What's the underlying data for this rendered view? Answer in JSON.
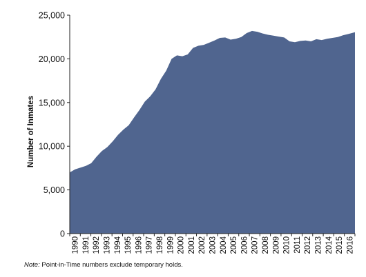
{
  "chart_data": {
    "type": "area",
    "title": "",
    "xlabel": "",
    "ylabel": "Number of Inmates",
    "ylim": [
      0,
      25000
    ],
    "yticks": [
      0,
      5000,
      10000,
      15000,
      20000,
      25000
    ],
    "ytick_labels": [
      "0",
      "5,000",
      "10,000",
      "15,000",
      "20,000",
      "25,000"
    ],
    "xticks": [
      "1990",
      "1991",
      "1992",
      "1993",
      "1994",
      "1995",
      "1996",
      "1997",
      "1998",
      "1999",
      "2000",
      "2001",
      "2002",
      "2003",
      "2004",
      "2005",
      "2006",
      "2007",
      "2008",
      "2009",
      "2010",
      "2011",
      "2012",
      "2013",
      "2014",
      "2015",
      "2016"
    ],
    "grid": false,
    "legend": "none",
    "color": "#50658f",
    "series": [
      {
        "x": [
          1990.0,
          1990.5,
          1991.0,
          1991.5,
          1992.0,
          1992.5,
          1993.0,
          1993.5,
          1994.0,
          1994.5,
          1995.0,
          1995.5,
          1996.0,
          1996.5,
          1997.0,
          1997.5,
          1998.0,
          1998.5,
          1999.0,
          1999.5,
          2000.0,
          2000.5,
          2001.0,
          2001.5,
          2002.0,
          2002.5,
          2003.0,
          2003.5,
          2004.0,
          2004.5,
          2005.0,
          2005.5,
          2006.0,
          2006.5,
          2007.0,
          2007.5,
          2008.0,
          2008.5,
          2009.0,
          2009.5,
          2010.0,
          2010.5,
          2011.0,
          2011.5,
          2012.0,
          2012.5,
          2013.0,
          2013.5,
          2014.0,
          2014.5,
          2015.0,
          2015.5,
          2016.0,
          2016.6
        ],
        "values": [
          7000,
          7350,
          7550,
          7750,
          8050,
          8800,
          9450,
          9900,
          10550,
          11300,
          11900,
          12400,
          13300,
          14150,
          15100,
          15700,
          16500,
          17700,
          18650,
          20000,
          20400,
          20300,
          20500,
          21250,
          21500,
          21600,
          21850,
          22100,
          22400,
          22450,
          22200,
          22300,
          22500,
          22950,
          23200,
          23100,
          22900,
          22750,
          22650,
          22550,
          22450,
          22000,
          21900,
          22050,
          22100,
          22000,
          22250,
          22150,
          22300,
          22400,
          22500,
          22700,
          22850,
          23050
        ]
      }
    ]
  },
  "note": {
    "label": "Note:",
    "text": " Point-in-Time numbers exclude temporary holds."
  }
}
